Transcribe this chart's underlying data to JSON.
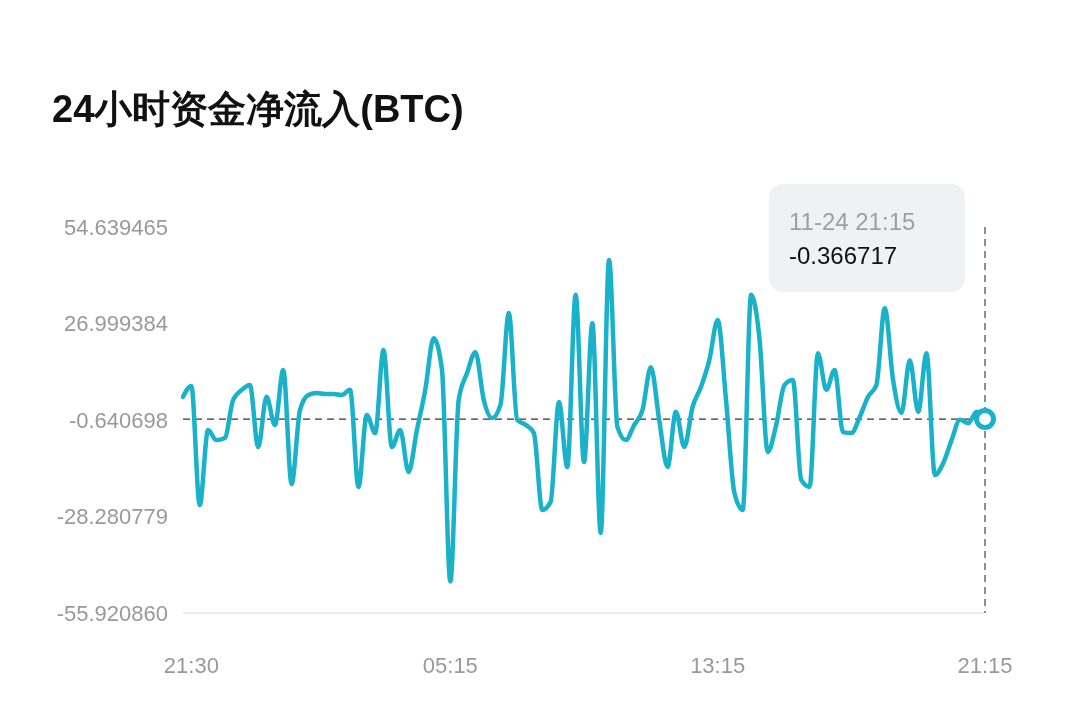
{
  "chart_data": {
    "type": "line",
    "title": "24小时资金净流入(BTC)",
    "categories": [
      null,
      "21:30",
      null,
      null,
      null,
      null,
      null,
      null,
      null,
      null,
      null,
      null,
      null,
      null,
      null,
      null,
      null,
      null,
      null,
      null,
      null,
      null,
      null,
      null,
      null,
      null,
      null,
      null,
      null,
      null,
      null,
      null,
      "05:15",
      null,
      null,
      null,
      null,
      null,
      null,
      null,
      null,
      null,
      null,
      null,
      null,
      null,
      null,
      null,
      null,
      null,
      null,
      null,
      null,
      null,
      null,
      null,
      null,
      null,
      null,
      null,
      null,
      null,
      null,
      null,
      "13:15",
      null,
      null,
      null,
      null,
      null,
      null,
      null,
      null,
      null,
      null,
      null,
      null,
      null,
      null,
      null,
      null,
      null,
      null,
      null,
      null,
      null,
      null,
      null,
      null,
      null,
      null,
      null,
      null,
      null,
      null,
      null,
      "21:15"
    ],
    "series": [
      {
        "color": "#19b2c9",
        "values": [
          6.0,
          9.1,
          -25.0,
          -3.5,
          -6.4,
          -5.8,
          5.1,
          7.9,
          9.4,
          -8.4,
          6.0,
          -2.1,
          13.7,
          -19.0,
          2.2,
          6.5,
          7.1,
          6.8,
          6.8,
          6.5,
          8.0,
          -19.8,
          0.8,
          -4.4,
          19.4,
          -8.4,
          -3.5,
          -15.5,
          -3.5,
          8.0,
          22.8,
          13.7,
          -46.9,
          5.1,
          12.8,
          18.8,
          5.1,
          -0.1,
          3.7,
          30.0,
          -0.6,
          -2.0,
          -4.4,
          -26.4,
          -24.1,
          4.5,
          -14.1,
          35.2,
          -12.7,
          27.1,
          -33.0,
          45.2,
          -2.6,
          -6.4,
          -2.1,
          2.2,
          14.5,
          -0.6,
          -14.1,
          1.7,
          -8.4,
          3.1,
          8.8,
          16.5,
          28.0,
          5.1,
          -21.5,
          -26.4,
          35.2,
          22.8,
          -9.8,
          -2.1,
          9.4,
          10.8,
          -17.8,
          -19.8,
          18.5,
          8.0,
          13.7,
          -4.1,
          -4.4,
          0.2,
          6.0,
          9.4,
          31.4,
          10.8,
          1.4,
          16.5,
          1.7,
          18.5,
          -16.4,
          -13.0,
          -6.4,
          -0.6,
          -1.5,
          1.7,
          -0.366717
        ]
      }
    ],
    "ylim": [
      -55.92086,
      54.639465
    ],
    "yticks": [
      {
        "value": -55.92086,
        "label": "-55.920860"
      },
      -28.280779,
      -0.640698,
      26.999384,
      54.639465
    ],
    "grid": false,
    "marker": "none",
    "line_style": "solid",
    "ref_lines": [
      {
        "axis": "x",
        "value": "21:15",
        "color": "#555555",
        "line_style": "dashed"
      },
      {
        "axis": "y",
        "value": -0.366717,
        "color": "#333333",
        "line_style": "dashed"
      }
    ],
    "annotations": [
      "11-24 21:15",
      "-0.366717"
    ]
  }
}
